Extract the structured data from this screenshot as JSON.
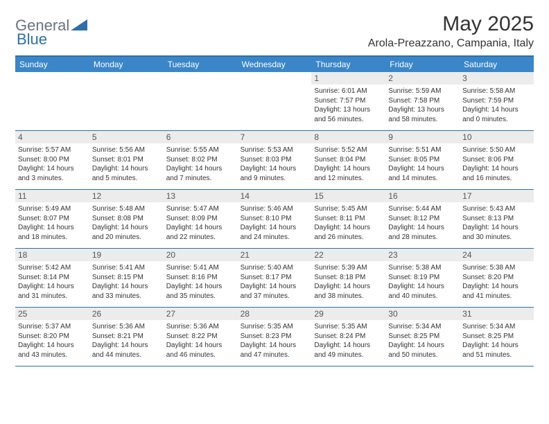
{
  "logo": {
    "part1": "General",
    "part2": "Blue"
  },
  "title": "May 2025",
  "location": "Arola-Preazzano, Campania, Italy",
  "colors": {
    "header_bar": "#3a86c8",
    "border": "#2f6fa8",
    "daynum_bg": "#ececec",
    "logo_gray": "#6b7280",
    "logo_blue": "#2f6fa8"
  },
  "weekdays": [
    "Sunday",
    "Monday",
    "Tuesday",
    "Wednesday",
    "Thursday",
    "Friday",
    "Saturday"
  ],
  "weeks": [
    [
      {
        "n": "",
        "empty": true
      },
      {
        "n": "",
        "empty": true
      },
      {
        "n": "",
        "empty": true
      },
      {
        "n": "",
        "empty": true
      },
      {
        "n": "1",
        "sr": "6:01 AM",
        "ss": "7:57 PM",
        "dl": "13 hours and 56 minutes."
      },
      {
        "n": "2",
        "sr": "5:59 AM",
        "ss": "7:58 PM",
        "dl": "13 hours and 58 minutes."
      },
      {
        "n": "3",
        "sr": "5:58 AM",
        "ss": "7:59 PM",
        "dl": "14 hours and 0 minutes."
      }
    ],
    [
      {
        "n": "4",
        "sr": "5:57 AM",
        "ss": "8:00 PM",
        "dl": "14 hours and 3 minutes."
      },
      {
        "n": "5",
        "sr": "5:56 AM",
        "ss": "8:01 PM",
        "dl": "14 hours and 5 minutes."
      },
      {
        "n": "6",
        "sr": "5:55 AM",
        "ss": "8:02 PM",
        "dl": "14 hours and 7 minutes."
      },
      {
        "n": "7",
        "sr": "5:53 AM",
        "ss": "8:03 PM",
        "dl": "14 hours and 9 minutes."
      },
      {
        "n": "8",
        "sr": "5:52 AM",
        "ss": "8:04 PM",
        "dl": "14 hours and 12 minutes."
      },
      {
        "n": "9",
        "sr": "5:51 AM",
        "ss": "8:05 PM",
        "dl": "14 hours and 14 minutes."
      },
      {
        "n": "10",
        "sr": "5:50 AM",
        "ss": "8:06 PM",
        "dl": "14 hours and 16 minutes."
      }
    ],
    [
      {
        "n": "11",
        "sr": "5:49 AM",
        "ss": "8:07 PM",
        "dl": "14 hours and 18 minutes."
      },
      {
        "n": "12",
        "sr": "5:48 AM",
        "ss": "8:08 PM",
        "dl": "14 hours and 20 minutes."
      },
      {
        "n": "13",
        "sr": "5:47 AM",
        "ss": "8:09 PM",
        "dl": "14 hours and 22 minutes."
      },
      {
        "n": "14",
        "sr": "5:46 AM",
        "ss": "8:10 PM",
        "dl": "14 hours and 24 minutes."
      },
      {
        "n": "15",
        "sr": "5:45 AM",
        "ss": "8:11 PM",
        "dl": "14 hours and 26 minutes."
      },
      {
        "n": "16",
        "sr": "5:44 AM",
        "ss": "8:12 PM",
        "dl": "14 hours and 28 minutes."
      },
      {
        "n": "17",
        "sr": "5:43 AM",
        "ss": "8:13 PM",
        "dl": "14 hours and 30 minutes."
      }
    ],
    [
      {
        "n": "18",
        "sr": "5:42 AM",
        "ss": "8:14 PM",
        "dl": "14 hours and 31 minutes."
      },
      {
        "n": "19",
        "sr": "5:41 AM",
        "ss": "8:15 PM",
        "dl": "14 hours and 33 minutes."
      },
      {
        "n": "20",
        "sr": "5:41 AM",
        "ss": "8:16 PM",
        "dl": "14 hours and 35 minutes."
      },
      {
        "n": "21",
        "sr": "5:40 AM",
        "ss": "8:17 PM",
        "dl": "14 hours and 37 minutes."
      },
      {
        "n": "22",
        "sr": "5:39 AM",
        "ss": "8:18 PM",
        "dl": "14 hours and 38 minutes."
      },
      {
        "n": "23",
        "sr": "5:38 AM",
        "ss": "8:19 PM",
        "dl": "14 hours and 40 minutes."
      },
      {
        "n": "24",
        "sr": "5:38 AM",
        "ss": "8:20 PM",
        "dl": "14 hours and 41 minutes."
      }
    ],
    [
      {
        "n": "25",
        "sr": "5:37 AM",
        "ss": "8:20 PM",
        "dl": "14 hours and 43 minutes."
      },
      {
        "n": "26",
        "sr": "5:36 AM",
        "ss": "8:21 PM",
        "dl": "14 hours and 44 minutes."
      },
      {
        "n": "27",
        "sr": "5:36 AM",
        "ss": "8:22 PM",
        "dl": "14 hours and 46 minutes."
      },
      {
        "n": "28",
        "sr": "5:35 AM",
        "ss": "8:23 PM",
        "dl": "14 hours and 47 minutes."
      },
      {
        "n": "29",
        "sr": "5:35 AM",
        "ss": "8:24 PM",
        "dl": "14 hours and 49 minutes."
      },
      {
        "n": "30",
        "sr": "5:34 AM",
        "ss": "8:25 PM",
        "dl": "14 hours and 50 minutes."
      },
      {
        "n": "31",
        "sr": "5:34 AM",
        "ss": "8:25 PM",
        "dl": "14 hours and 51 minutes."
      }
    ]
  ],
  "labels": {
    "sunrise": "Sunrise: ",
    "sunset": "Sunset: ",
    "daylight": "Daylight: "
  }
}
